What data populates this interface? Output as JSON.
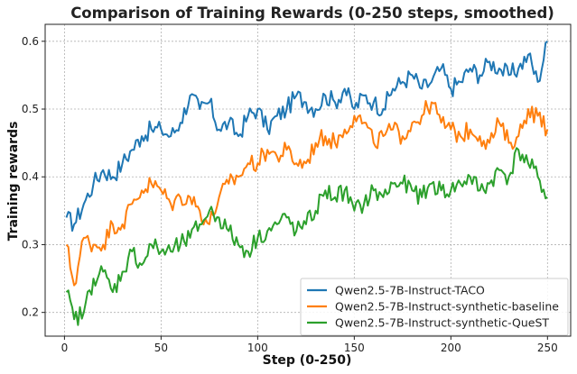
{
  "chart_data": {
    "type": "line",
    "title": "Comparison of Training Rewards (0-250 steps, smoothed)",
    "xlabel": "Step (0-250)",
    "ylabel": "Training rewards",
    "xlim": [
      -10,
      262
    ],
    "ylim": [
      0.165,
      0.625
    ],
    "xticks": [
      0,
      50,
      100,
      150,
      200,
      250
    ],
    "yticks": [
      0.2,
      0.3,
      0.4,
      0.5,
      0.6
    ],
    "grid": true,
    "legend_position": "lower-right",
    "series": [
      {
        "name": "Qwen2.5-7B-Instruct-TACO",
        "color": "#1f77b4",
        "x": [
          1,
          5,
          10,
          15,
          20,
          25,
          30,
          35,
          40,
          45,
          50,
          55,
          60,
          65,
          70,
          75,
          80,
          85,
          90,
          95,
          100,
          105,
          110,
          115,
          120,
          125,
          130,
          135,
          140,
          145,
          150,
          155,
          160,
          165,
          170,
          175,
          180,
          185,
          190,
          195,
          200,
          205,
          210,
          215,
          220,
          225,
          230,
          235,
          240,
          245,
          250
        ],
        "values": [
          0.34,
          0.33,
          0.36,
          0.39,
          0.41,
          0.4,
          0.42,
          0.44,
          0.46,
          0.47,
          0.47,
          0.46,
          0.48,
          0.52,
          0.5,
          0.51,
          0.47,
          0.48,
          0.46,
          0.49,
          0.5,
          0.47,
          0.49,
          0.5,
          0.52,
          0.51,
          0.5,
          0.52,
          0.51,
          0.53,
          0.5,
          0.52,
          0.51,
          0.5,
          0.53,
          0.54,
          0.55,
          0.53,
          0.54,
          0.56,
          0.53,
          0.54,
          0.56,
          0.55,
          0.57,
          0.56,
          0.55,
          0.56,
          0.58,
          0.54,
          0.6
        ]
      },
      {
        "name": "Qwen2.5-7B-Instruct-synthetic-baseline",
        "color": "#ff7f0e",
        "x": [
          1,
          5,
          10,
          15,
          20,
          25,
          30,
          35,
          40,
          45,
          50,
          55,
          60,
          65,
          70,
          75,
          80,
          85,
          90,
          95,
          100,
          105,
          110,
          115,
          120,
          125,
          130,
          135,
          140,
          145,
          150,
          155,
          160,
          165,
          170,
          175,
          180,
          185,
          190,
          195,
          200,
          205,
          210,
          215,
          220,
          225,
          230,
          235,
          240,
          245,
          250
        ],
        "values": [
          0.3,
          0.24,
          0.31,
          0.3,
          0.3,
          0.33,
          0.33,
          0.36,
          0.38,
          0.39,
          0.38,
          0.36,
          0.37,
          0.37,
          0.35,
          0.33,
          0.37,
          0.39,
          0.4,
          0.42,
          0.42,
          0.44,
          0.43,
          0.44,
          0.42,
          0.42,
          0.45,
          0.46,
          0.45,
          0.47,
          0.49,
          0.48,
          0.45,
          0.46,
          0.47,
          0.46,
          0.48,
          0.49,
          0.51,
          0.48,
          0.47,
          0.46,
          0.47,
          0.46,
          0.45,
          0.48,
          0.45,
          0.46,
          0.5,
          0.49,
          0.47
        ]
      },
      {
        "name": "Qwen2.5-7B-Instruct-synthetic-QueST",
        "color": "#2ca02c",
        "x": [
          1,
          5,
          10,
          15,
          20,
          25,
          30,
          35,
          40,
          45,
          50,
          55,
          60,
          65,
          70,
          75,
          80,
          85,
          90,
          95,
          100,
          105,
          110,
          115,
          120,
          125,
          130,
          135,
          140,
          145,
          150,
          155,
          160,
          165,
          170,
          175,
          180,
          185,
          190,
          195,
          200,
          205,
          210,
          215,
          220,
          225,
          230,
          235,
          240,
          245,
          250
        ],
        "values": [
          0.23,
          0.19,
          0.2,
          0.25,
          0.26,
          0.23,
          0.26,
          0.29,
          0.27,
          0.3,
          0.29,
          0.29,
          0.3,
          0.31,
          0.33,
          0.35,
          0.34,
          0.32,
          0.3,
          0.29,
          0.31,
          0.32,
          0.33,
          0.34,
          0.32,
          0.33,
          0.35,
          0.38,
          0.37,
          0.38,
          0.35,
          0.36,
          0.38,
          0.37,
          0.39,
          0.39,
          0.38,
          0.37,
          0.39,
          0.38,
          0.38,
          0.39,
          0.4,
          0.38,
          0.39,
          0.41,
          0.4,
          0.44,
          0.42,
          0.4,
          0.37
        ]
      }
    ]
  }
}
